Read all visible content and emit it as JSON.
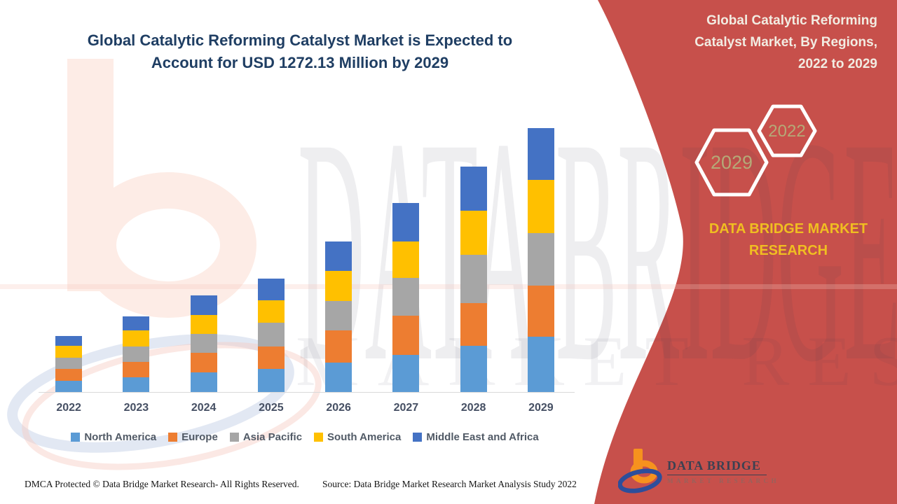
{
  "header": {
    "title": "Global Catalytic Reforming Catalyst Market is Expected to\nAccount for USD 1272.13 Million by 2029"
  },
  "side_panel": {
    "title": "Global Catalytic Reforming\nCatalyst Market, By Regions,\n2022 to 2029",
    "badges": [
      {
        "label": "2029"
      },
      {
        "label": "2022"
      }
    ],
    "brand": "DATA BRIDGE MARKET\nRESEARCH",
    "panel_color": "#c7504b",
    "brand_color": "#f0be21",
    "badge_text_color": "#b5a977"
  },
  "chart_data": {
    "type": "bar",
    "stacked": true,
    "title": "Global Catalytic Reforming Catalyst Market, By Regions, 2022 to 2029",
    "unit": "USD Million",
    "categories": [
      "2022",
      "2023",
      "2024",
      "2025",
      "2026",
      "2027",
      "2028",
      "2029"
    ],
    "series": [
      {
        "name": "North America",
        "color": "#5b9bd5",
        "values": [
          54,
          71,
          93,
          111,
          143,
          179,
          223,
          268
        ]
      },
      {
        "name": "Europe",
        "color": "#ed7d31",
        "values": [
          58,
          76,
          96,
          110,
          155,
          189,
          207,
          244
        ]
      },
      {
        "name": "Asia Pacific",
        "color": "#a6a6a6",
        "values": [
          54,
          74,
          91,
          113,
          141,
          184,
          230,
          253
        ]
      },
      {
        "name": "South America",
        "color": "#ffc000",
        "values": [
          57,
          77,
          92,
          107,
          145,
          175,
          214,
          256
        ]
      },
      {
        "name": "Middle East and Africa",
        "color": "#4472c4",
        "values": [
          48,
          67,
          93,
          107,
          143,
          184,
          213,
          251.13
        ]
      }
    ],
    "annotation": "2029 total = USD 1272.13 Million",
    "values_estimated_from_pixels": true,
    "ylim": [
      0,
      1300
    ],
    "grid": false,
    "legend_position": "bottom"
  },
  "watermark": {
    "line1": "DATA BRIDGE",
    "line2": "MARKET RESEARCH"
  },
  "logo": {
    "title": "DATA BRIDGE",
    "subtitle": "MARKET RESEARCH"
  },
  "footer": {
    "dmca": "DMCA Protected © Data Bridge Market Research- All Rights Reserved.",
    "source": "Source: Data Bridge Market Research Market Analysis Study 2022"
  }
}
